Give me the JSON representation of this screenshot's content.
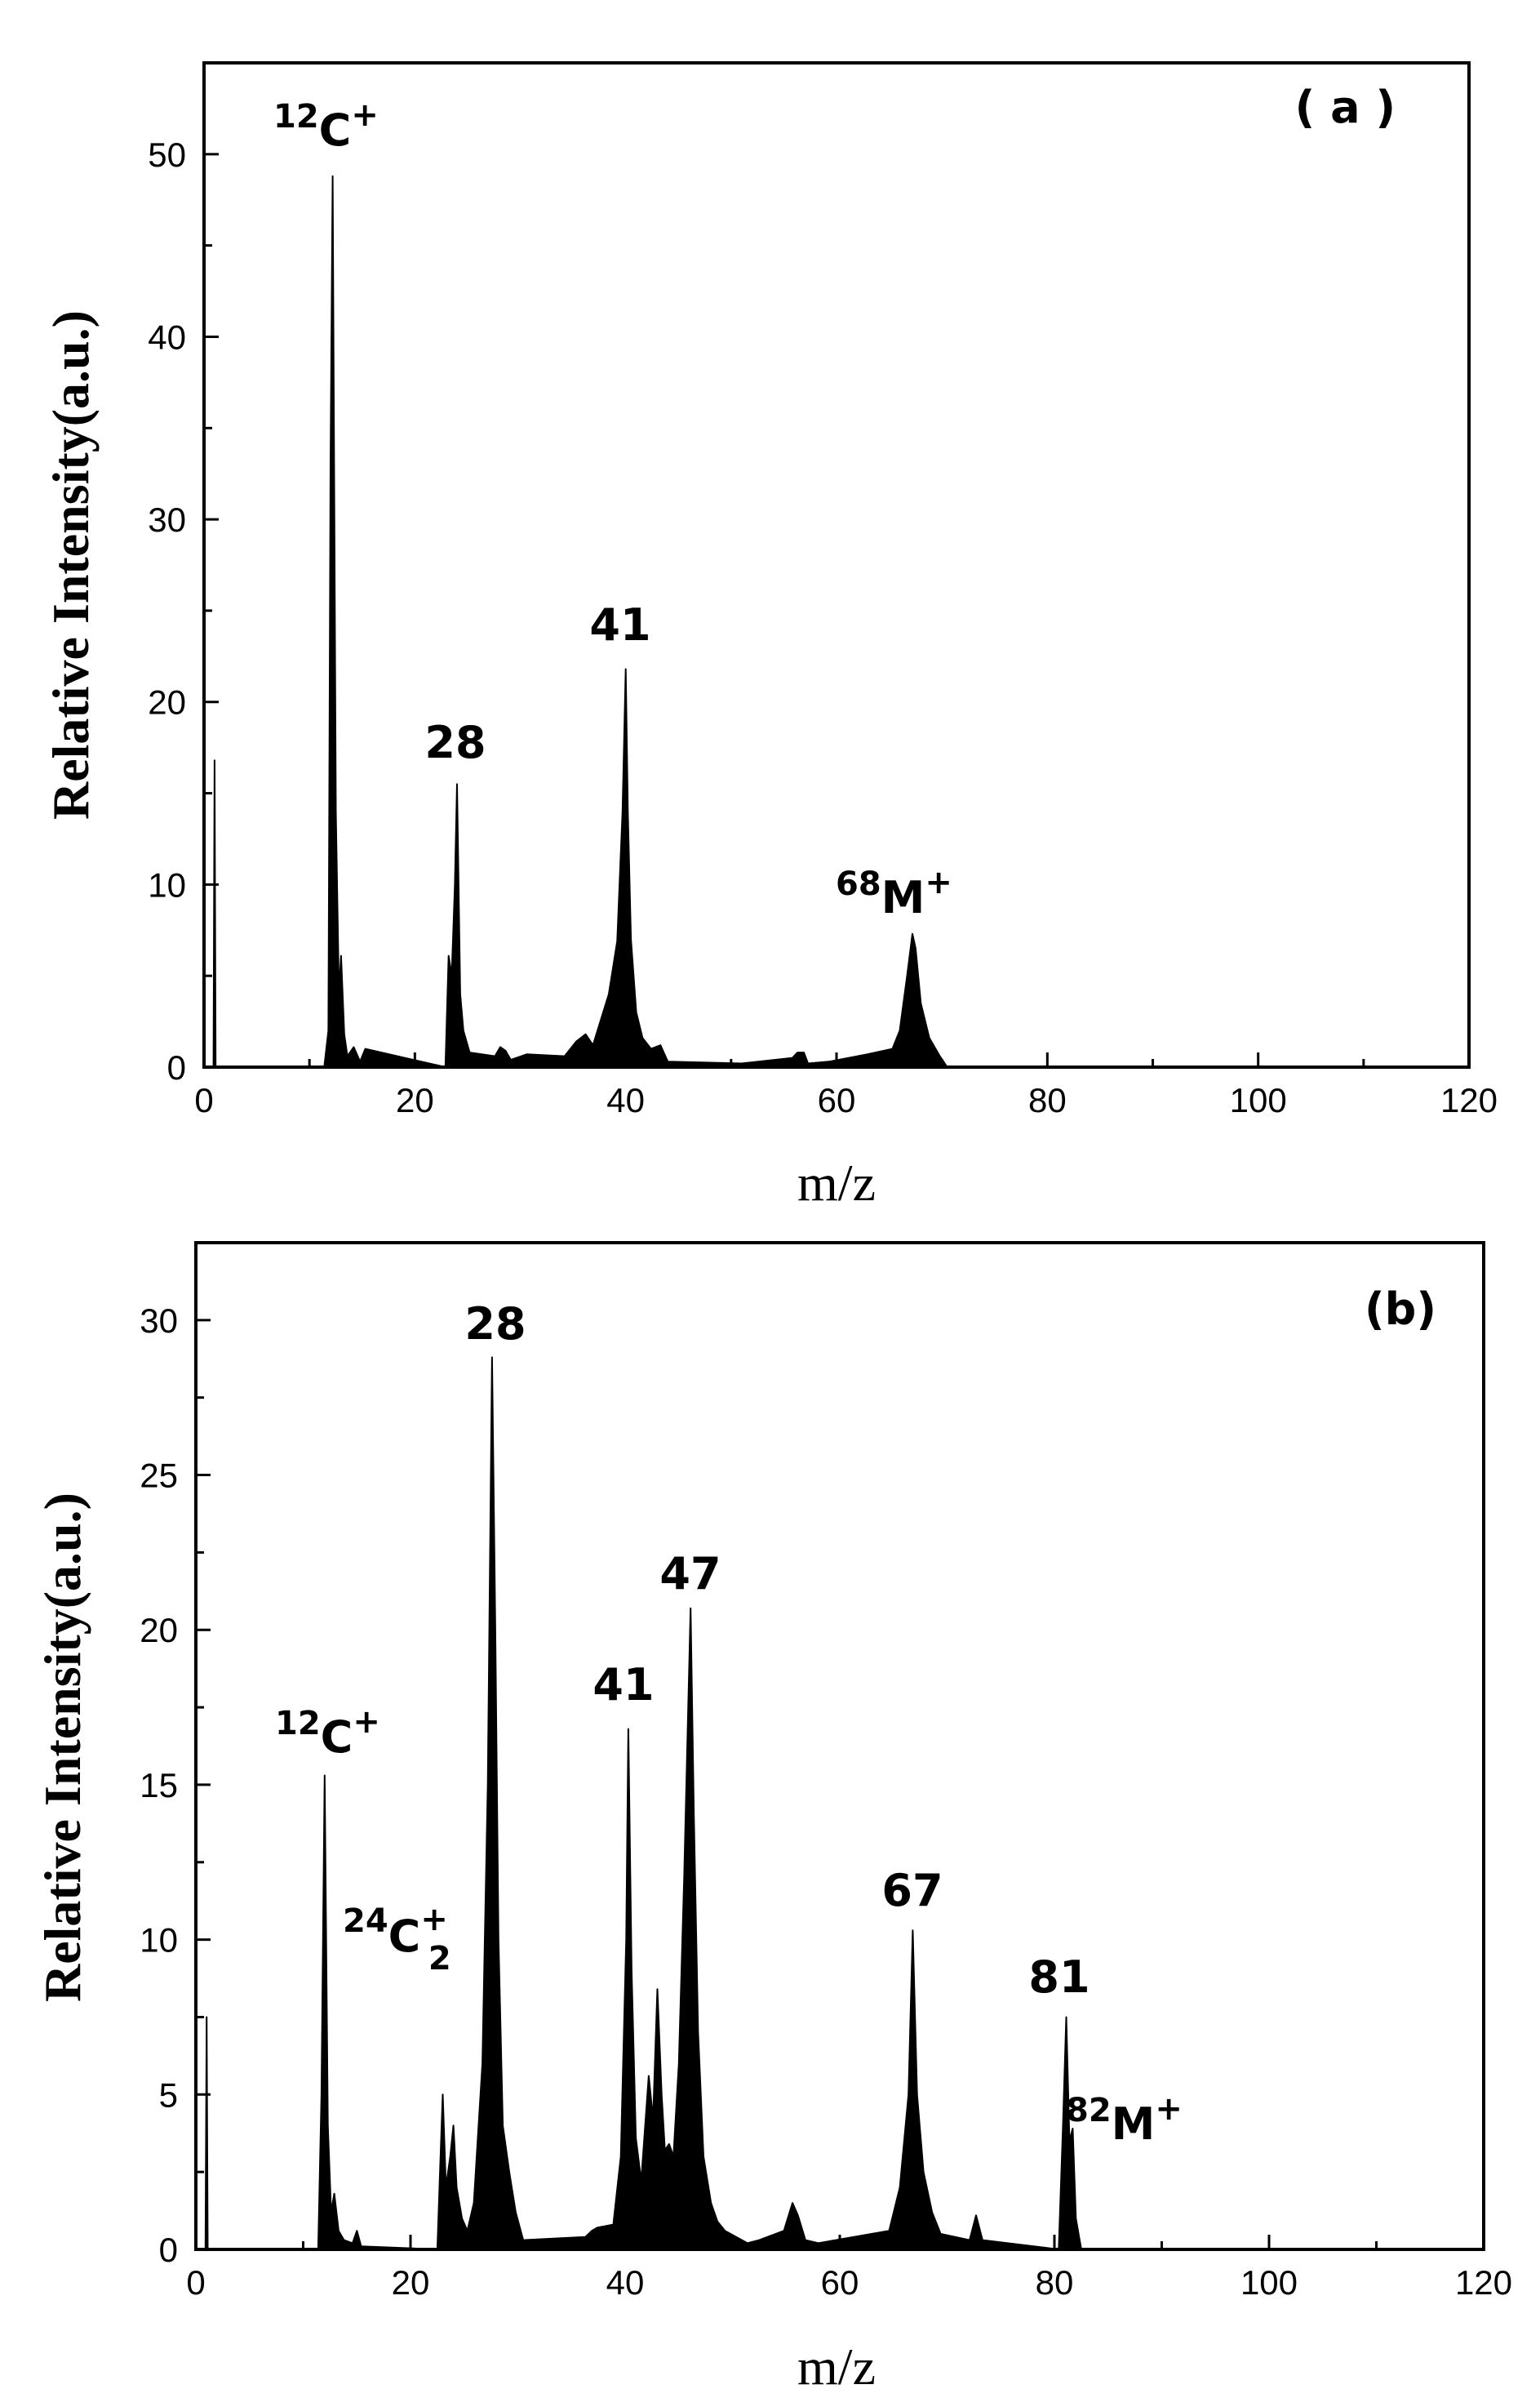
{
  "chart_data": [
    {
      "type": "line",
      "panel_label": "( a )",
      "xlabel": "m/z",
      "ylabel": "Relative Intensity(a.u.)",
      "xlim": [
        0,
        120
      ],
      "ylim": [
        0,
        55
      ],
      "xticks": [
        0,
        20,
        40,
        60,
        80,
        100,
        120
      ],
      "yticks": [
        0,
        10,
        20,
        30,
        40,
        50
      ],
      "grid": false,
      "series": [
        {
          "name": "spectrum (a)",
          "x": [
            0.0,
            0.9,
            1.0,
            1.1,
            11.4,
            11.8,
            12.0,
            12.2,
            12.5,
            12.8,
            13.0,
            13.3,
            13.6,
            14.2,
            14.8,
            15.3,
            22.9,
            23.2,
            23.5,
            23.8,
            24.0,
            24.3,
            24.6,
            25.2,
            27.6,
            28.1,
            28.6,
            29.1,
            30.6,
            34.2,
            35.3,
            36.2,
            36.9,
            38.4,
            39.2,
            39.7,
            40.0,
            40.2,
            40.5,
            41.0,
            41.6,
            42.4,
            43.3,
            44.0,
            51.0,
            55.8,
            56.3,
            56.9,
            57.3,
            59.3,
            62.9,
            65.3,
            66.0,
            66.7,
            67.2,
            67.5,
            68.0,
            68.8,
            69.8,
            70.5,
            120.0
          ],
          "y": [
            0.0,
            0.0,
            16.8,
            0.0,
            0.0,
            2.0,
            33.0,
            48.8,
            14.0,
            4.0,
            6.1,
            1.8,
            0.6,
            1.1,
            0.3,
            1.0,
            0.0,
            6.1,
            5.0,
            10.0,
            15.5,
            4.0,
            2.0,
            0.8,
            0.6,
            1.1,
            0.9,
            0.4,
            0.7,
            0.6,
            1.4,
            1.8,
            1.2,
            4.0,
            6.9,
            14.0,
            21.8,
            14.0,
            7.0,
            3.0,
            1.6,
            1.0,
            1.2,
            0.3,
            0.2,
            0.5,
            0.8,
            0.8,
            0.2,
            0.3,
            0.7,
            1.0,
            2.0,
            5.0,
            7.3,
            6.5,
            3.5,
            1.6,
            0.6,
            0.0,
            0.0
          ]
        }
      ],
      "annotations": [
        {
          "mass": "12",
          "ion": "C",
          "charge": "+",
          "x": 12,
          "y": 48.8
        },
        {
          "text": "28",
          "x": 24,
          "y": 15.5
        },
        {
          "text": "41",
          "x": 40,
          "y": 21.8
        },
        {
          "mass": "68",
          "ion": "M",
          "charge": "+",
          "x": 67.2,
          "y": 7.3
        }
      ]
    },
    {
      "type": "line",
      "panel_label": "(b)",
      "xlabel": "m/z",
      "ylabel": "Relative Intensity(a.u.)",
      "xlim": [
        0,
        120
      ],
      "ylim": [
        0,
        32.5
      ],
      "xticks": [
        0,
        20,
        40,
        60,
        80,
        100,
        120
      ],
      "yticks": [
        0,
        5,
        10,
        15,
        20,
        25,
        30
      ],
      "grid": false,
      "series": [
        {
          "name": "spectrum (b)",
          "x": [
            0.0,
            0.9,
            1.0,
            1.1,
            11.4,
            11.7,
            12.0,
            12.3,
            12.6,
            12.9,
            13.3,
            13.8,
            14.6,
            15.0,
            15.4,
            22.5,
            22.8,
            23.0,
            23.3,
            23.7,
            24.0,
            24.3,
            24.8,
            25.3,
            25.9,
            26.7,
            27.2,
            27.6,
            27.9,
            28.2,
            28.6,
            29.2,
            29.8,
            30.5,
            36.3,
            36.9,
            37.4,
            38.9,
            39.6,
            40.1,
            40.3,
            40.6,
            41.0,
            41.5,
            42.2,
            42.6,
            43.0,
            43.4,
            43.7,
            44.1,
            44.5,
            45.0,
            45.5,
            46.1,
            46.4,
            46.8,
            47.3,
            48.0,
            48.6,
            49.3,
            51.4,
            52.5,
            54.8,
            55.6,
            56.1,
            56.8,
            58.0,
            64.6,
            65.6,
            66.4,
            66.8,
            67.2,
            67.8,
            68.6,
            69.4,
            72.1,
            72.7,
            73.3,
            80.4,
            80.8,
            81.1,
            81.4,
            81.7,
            82.0,
            82.5,
            120.0
          ],
          "y": [
            0.0,
            0.0,
            7.5,
            0.0,
            0.0,
            5.0,
            15.3,
            4.0,
            1.2,
            1.8,
            0.6,
            0.3,
            0.2,
            0.6,
            0.1,
            0.0,
            3.0,
            5.0,
            2.0,
            3.0,
            4.0,
            2.0,
            1.0,
            0.6,
            1.5,
            6.0,
            15.0,
            28.8,
            20.0,
            10.0,
            4.0,
            2.5,
            1.2,
            0.3,
            0.4,
            0.6,
            0.7,
            0.8,
            3.0,
            10.0,
            16.8,
            9.0,
            3.6,
            2.2,
            5.6,
            4.2,
            8.4,
            5.0,
            3.2,
            3.4,
            3.0,
            6.0,
            12.0,
            20.7,
            14.0,
            7.0,
            3.0,
            1.5,
            0.9,
            0.6,
            0.2,
            0.3,
            0.6,
            1.5,
            1.1,
            0.3,
            0.2,
            0.6,
            2.0,
            5.0,
            10.3,
            5.0,
            2.5,
            1.2,
            0.5,
            0.3,
            1.1,
            0.3,
            0.0,
            4.0,
            7.5,
            3.5,
            3.9,
            1.0,
            0.0,
            0.0
          ]
        }
      ],
      "annotations": [
        {
          "mass": "12",
          "ion": "C",
          "charge": "+",
          "x": 12,
          "y": 15.3
        },
        {
          "mass": "24",
          "ion": "C",
          "sub": "2",
          "charge": "+",
          "x": 23,
          "y": 5.0
        },
        {
          "text": "28",
          "x": 28,
          "y": 28.8
        },
        {
          "text": "41",
          "x": 40,
          "y": 16.8
        },
        {
          "text": "47",
          "x": 46,
          "y": 20.7
        },
        {
          "text": "67",
          "x": 67,
          "y": 10.3
        },
        {
          "text": "81",
          "x": 81,
          "y": 7.5
        },
        {
          "mass": "82",
          "ion": "M",
          "charge": "+",
          "x": 82,
          "y": 3.9
        }
      ]
    }
  ]
}
